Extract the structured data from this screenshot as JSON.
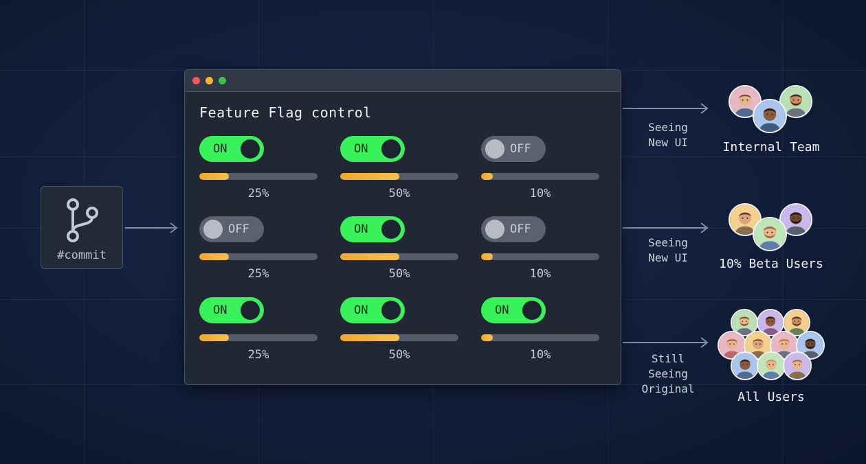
{
  "panel": {
    "title": "Feature Flag control",
    "flags": [
      {
        "state": "ON",
        "rollout": 0.25,
        "label": "25%"
      },
      {
        "state": "ON",
        "rollout": 0.5,
        "label": "50%"
      },
      {
        "state": "OFF",
        "rollout": 0.1,
        "label": "10%"
      },
      {
        "state": "OFF",
        "rollout": 0.25,
        "label": "25%"
      },
      {
        "state": "ON",
        "rollout": 0.5,
        "label": "50%"
      },
      {
        "state": "OFF",
        "rollout": 0.1,
        "label": "10%"
      },
      {
        "state": "ON",
        "rollout": 0.25,
        "label": "25%"
      },
      {
        "state": "ON",
        "rollout": 0.5,
        "label": "50%"
      },
      {
        "state": "ON",
        "rollout": 0.1,
        "label": "10%"
      }
    ]
  },
  "commit": {
    "label": "#commit",
    "icon": "git-branch-icon"
  },
  "audiences": [
    {
      "status_line1": "Seeing",
      "status_line2": "New UI",
      "group": "Internal Team"
    },
    {
      "status_line1": "Seeing",
      "status_line2": "New UI",
      "group": "10% Beta Users"
    },
    {
      "status_line1": "Still Seeing",
      "status_line2": "Original",
      "group": "All Users"
    }
  ],
  "colors": {
    "toggle_on": "#38f25a",
    "toggle_off": "#5a6170",
    "progress": "#f0a72a",
    "background": "#13203d"
  }
}
